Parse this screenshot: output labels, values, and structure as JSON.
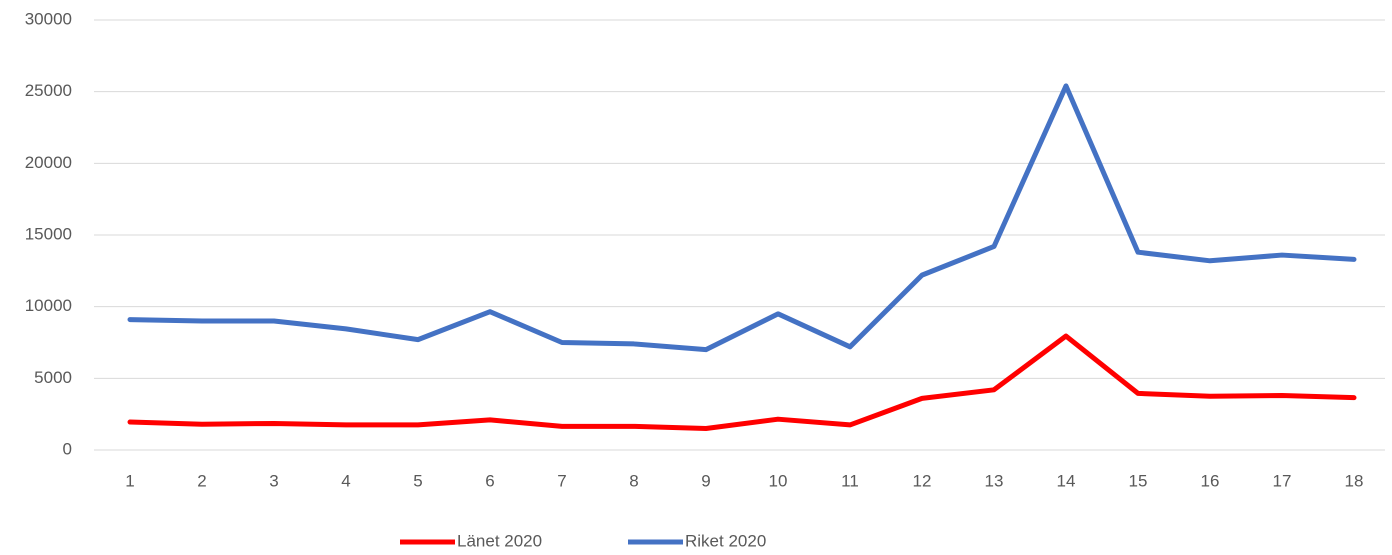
{
  "chart_data": {
    "type": "line",
    "categories": [
      "1",
      "2",
      "3",
      "4",
      "5",
      "6",
      "7",
      "8",
      "9",
      "10",
      "11",
      "12",
      "13",
      "14",
      "15",
      "16",
      "17",
      "18"
    ],
    "series": [
      {
        "name": "Länet 2020",
        "color": "#ff0000",
        "values": [
          1950,
          1800,
          1850,
          1750,
          1750,
          2100,
          1650,
          1650,
          1500,
          2150,
          1750,
          3600,
          4200,
          7950,
          3950,
          3750,
          3800,
          3650
        ]
      },
      {
        "name": "Riket 2020",
        "color": "#4472c4",
        "values": [
          9100,
          9000,
          9000,
          8450,
          7700,
          9650,
          7500,
          7400,
          7000,
          9500,
          7200,
          12200,
          14200,
          25400,
          13800,
          13200,
          13600,
          13300
        ]
      }
    ],
    "ylim": [
      0,
      30000
    ],
    "yticks": [
      0,
      5000,
      10000,
      15000,
      20000,
      25000,
      30000
    ],
    "grid": true,
    "legend": "bottom"
  }
}
